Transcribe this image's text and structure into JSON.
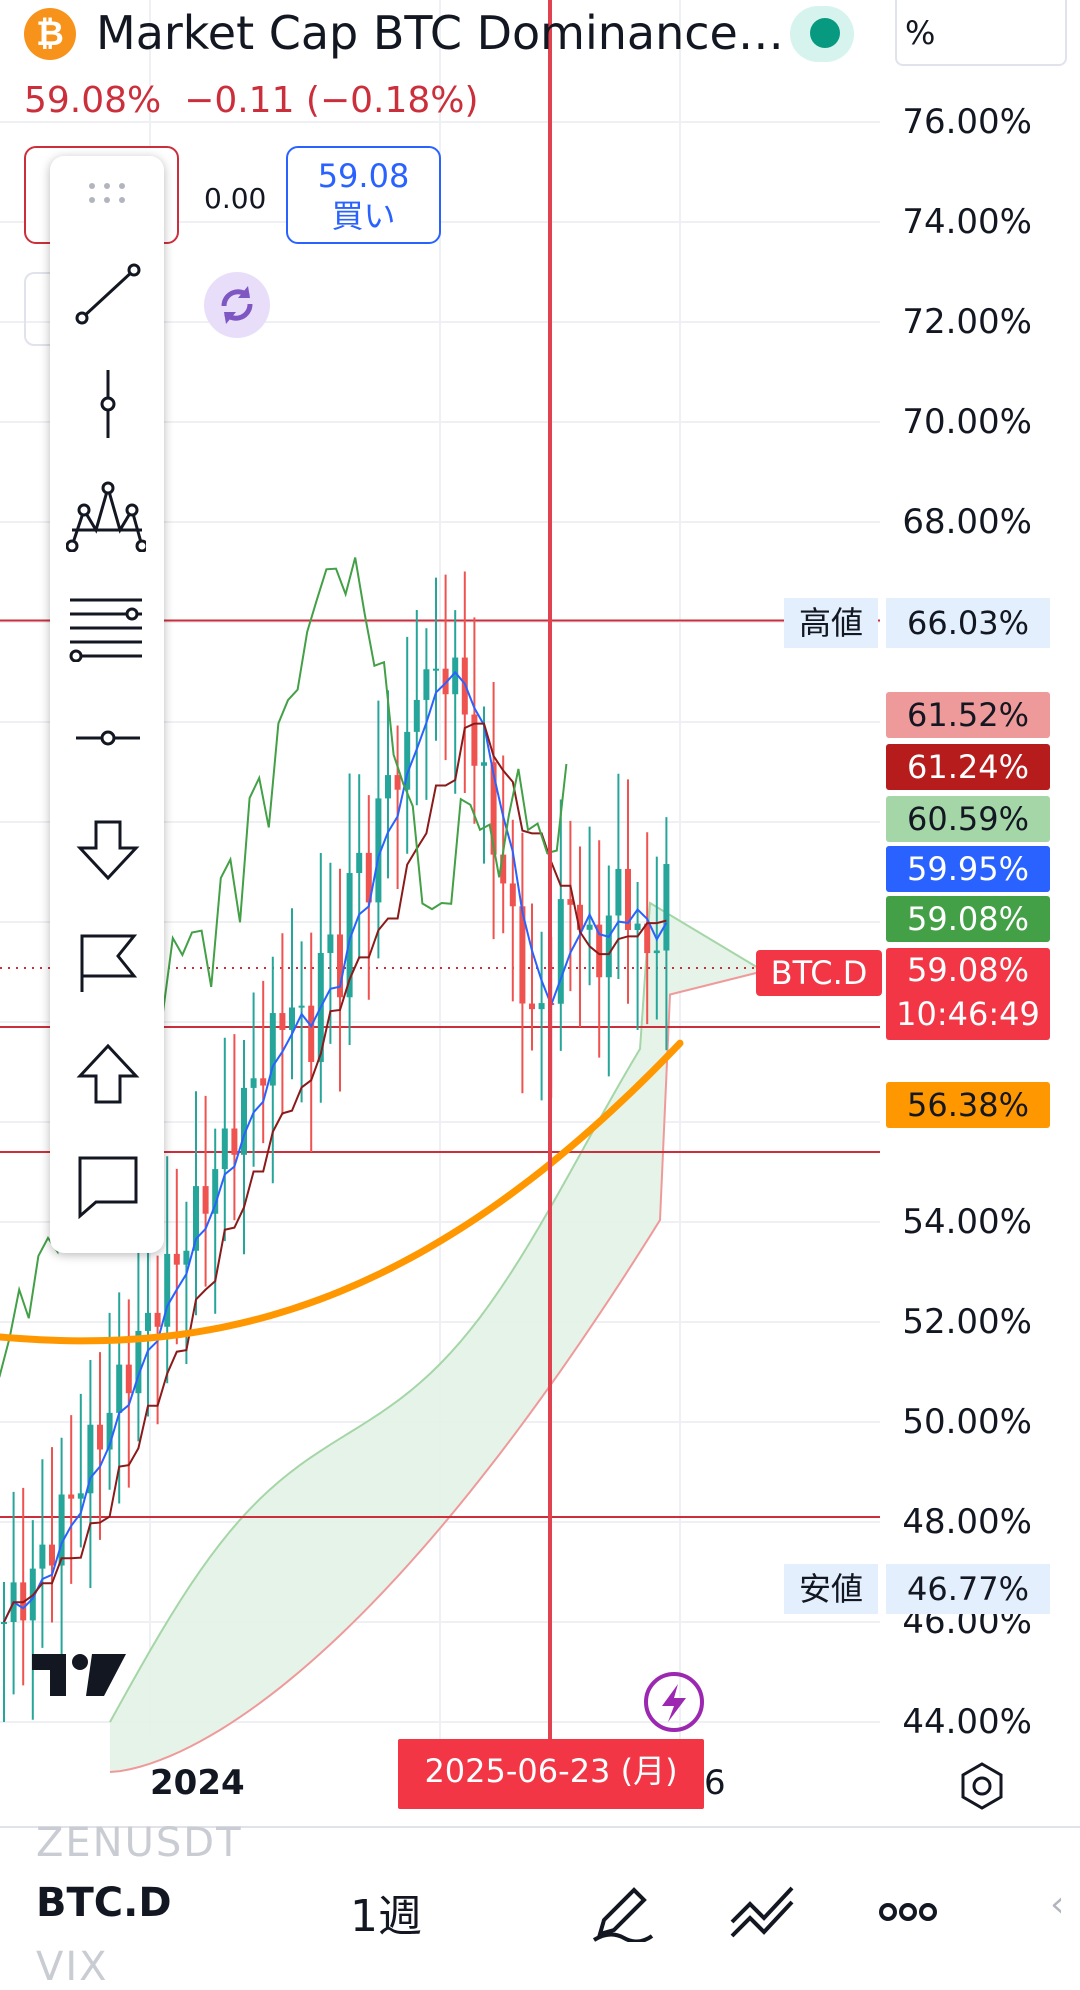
{
  "header": {
    "symbol_title": "Market Cap BTC Dominance…",
    "logo_glyph": "₿",
    "scale_mode": "%",
    "last_price": "59.08%",
    "change": "−0.11 (−0.18%)"
  },
  "trade_panel": {
    "sell_value": "",
    "spread": "0.00",
    "buy_value": "59.08",
    "buy_label": "買い"
  },
  "drawing_toolbar": {
    "items": [
      "drag-handle",
      "trend-line-icon",
      "vertical-line-icon",
      "pattern-icon",
      "fib-lines-icon",
      "horizontal-ray-icon",
      "arrow-down-icon",
      "flag-icon",
      "arrow-up-icon",
      "comment-icon"
    ]
  },
  "price_axis": {
    "labels": [
      "76.00%",
      "74.00%",
      "72.00%",
      "70.00%",
      "68.00%",
      "54.00%",
      "52.00%",
      "50.00%",
      "48.00%",
      "46.00%",
      "44.00%"
    ],
    "high_word": "高値",
    "high_value": "66.03%",
    "low_word": "安値",
    "low_value": "46.77%",
    "tags": [
      {
        "value": "61.52%",
        "color": "#ef9a9a",
        "text_color": "#131722"
      },
      {
        "value": "61.24%",
        "color": "#b71c1c",
        "text_color": "#ffffff"
      },
      {
        "value": "60.59%",
        "color": "#a5d6a7",
        "text_color": "#131722"
      },
      {
        "value": "59.95%",
        "color": "#2962ff",
        "text_color": "#ffffff"
      },
      {
        "value": "59.08%",
        "color": "#43a047",
        "text_color": "#ffffff"
      }
    ],
    "symbol_tag": "BTC.D",
    "current_value": "59.08%",
    "countdown": "10:46:49",
    "ma_tag": "56.38%",
    "ma_color": "#ff9800"
  },
  "time_axis": {
    "label_2024": "2024",
    "crosshair_date": "2025-06-23 (月)",
    "partial_label": "6"
  },
  "bottom_bar": {
    "ghost_above": "ZENUSDT",
    "symbol": "BTC.D",
    "interval": "1週",
    "ghost_below": "VIX"
  },
  "colors": {
    "accent_red": "#f23645",
    "line_red": "#cc2f3c",
    "kijun": "#8b1a1a",
    "tenkan": "#2962ff",
    "chikou": "#43a047",
    "ma": "#ff9800",
    "candle_up": "#26a69a",
    "candle_down": "#ef5350"
  }
}
